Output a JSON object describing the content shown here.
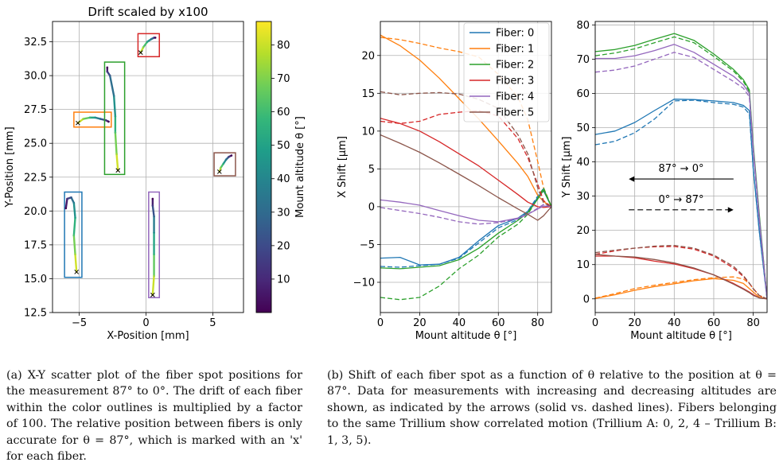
{
  "colors": {
    "fiber": [
      "#1f77b4",
      "#ff7f0e",
      "#2ca02c",
      "#d62728",
      "#9467bd",
      "#8c564b"
    ],
    "viridis": [
      "#440154",
      "#482878",
      "#3e4989",
      "#31688e",
      "#26828e",
      "#1f9e89",
      "#35b779",
      "#6ece58",
      "#b5de2b",
      "#fde725"
    ],
    "grid": "#b0b0b0",
    "axis": "#000000"
  },
  "captions": {
    "a": "(a) X-Y scatter plot of the fiber spot positions for the measurement 87° to 0°. The drift of each fiber within the color outlines is multiplied by a factor of 100. The relative position between fibers is only accurate for θ = 87°, which is marked with an 'x' for each fiber.",
    "b": "(b) Shift of each fiber spot as a function of θ relative to the position at θ = 87°. Data for measurements with increasing and decreasing altitudes are shown, as indicated by the arrows (solid vs. dashed lines). Fibers belonging to the same Trillium show correlated motion (Trillium A: 0, 2, 4 – Trillium B: 1, 3, 5)."
  },
  "chart_data": [
    {
      "type": "scatter",
      "title": "Drift scaled by x100",
      "xlabel": "X-Position [mm]",
      "ylabel": "Y-Position [mm]",
      "xlim": [
        -7.0,
        7.3
      ],
      "ylim": [
        12.5,
        34.0
      ],
      "xticks": [
        -5,
        0,
        5
      ],
      "yticks": [
        12.5,
        15.0,
        17.5,
        20.0,
        22.5,
        25.0,
        27.5,
        30.0,
        32.5
      ],
      "grid": true,
      "colorbar": {
        "label": "Mount altitude θ [°]",
        "range": [
          0,
          87
        ],
        "ticks": [
          10,
          20,
          30,
          40,
          50,
          60,
          70,
          80
        ]
      },
      "marker_at_87": "x",
      "fibers": [
        {
          "fiber": 0,
          "box": [
            -6.1,
            -4.8,
            15.1,
            21.4
          ],
          "track": [
            [
              -5.2,
              15.5
            ],
            [
              -5.3,
              16.8
            ],
            [
              -5.4,
              18.2
            ],
            [
              -5.3,
              19.5
            ],
            [
              -5.4,
              20.6
            ],
            [
              -5.6,
              21.0
            ],
            [
              -5.9,
              20.9
            ],
            [
              -6.0,
              20.2
            ]
          ],
          "theta": [
            87,
            75,
            62,
            50,
            38,
            25,
            12,
            0
          ]
        },
        {
          "fiber": 1,
          "box": [
            -5.4,
            -2.6,
            26.2,
            27.3
          ],
          "track": [
            [
              -5.1,
              26.5
            ],
            [
              -4.7,
              26.8
            ],
            [
              -4.2,
              26.9
            ],
            [
              -3.8,
              26.9
            ],
            [
              -3.4,
              26.8
            ],
            [
              -3.0,
              26.7
            ],
            [
              -2.8,
              26.6
            ]
          ],
          "theta": [
            87,
            73,
            58,
            44,
            29,
            15,
            0
          ]
        },
        {
          "fiber": 2,
          "box": [
            -3.1,
            -1.6,
            22.7,
            31.0
          ],
          "track": [
            [
              -2.1,
              23.0
            ],
            [
              -2.2,
              24.2
            ],
            [
              -2.3,
              25.8
            ],
            [
              -2.3,
              27.0
            ],
            [
              -2.4,
              28.5
            ],
            [
              -2.7,
              30.0
            ],
            [
              -2.9,
              30.3
            ],
            [
              -2.9,
              30.6
            ]
          ],
          "theta": [
            87,
            75,
            62,
            50,
            38,
            25,
            12,
            0
          ]
        },
        {
          "fiber": 3,
          "box": [
            -0.6,
            1.0,
            31.4,
            33.1
          ],
          "track": [
            [
              -0.4,
              31.7
            ],
            [
              -0.2,
              32.1
            ],
            [
              0.1,
              32.5
            ],
            [
              0.4,
              32.7
            ],
            [
              0.6,
              32.8
            ],
            [
              0.7,
              32.8
            ]
          ],
          "theta": [
            87,
            70,
            52,
            35,
            17,
            0
          ]
        },
        {
          "fiber": 4,
          "box": [
            0.2,
            1.0,
            13.6,
            21.4
          ],
          "track": [
            [
              0.5,
              13.8
            ],
            [
              0.6,
              15.2
            ],
            [
              0.6,
              16.8
            ],
            [
              0.6,
              18.4
            ],
            [
              0.6,
              19.6
            ],
            [
              0.5,
              20.4
            ],
            [
              0.5,
              20.9
            ]
          ],
          "theta": [
            87,
            73,
            58,
            44,
            29,
            15,
            0
          ]
        },
        {
          "fiber": 5,
          "box": [
            5.1,
            6.7,
            22.6,
            24.3
          ],
          "track": [
            [
              5.5,
              22.9
            ],
            [
              5.6,
              23.2
            ],
            [
              5.8,
              23.5
            ],
            [
              6.0,
              23.8
            ],
            [
              6.2,
              24.0
            ],
            [
              6.4,
              24.1
            ]
          ],
          "theta": [
            87,
            70,
            52,
            35,
            17,
            0
          ]
        }
      ]
    },
    {
      "type": "line",
      "xlabel": "Mount altitude θ [°]",
      "ylabel": "X Shift [μm]",
      "xlim": [
        0,
        87
      ],
      "ylim": [
        -14,
        24.5
      ],
      "xticks": [
        0,
        20,
        40,
        60,
        80
      ],
      "yticks": [
        -10,
        -5,
        0,
        5,
        10,
        15,
        20
      ],
      "grid": true,
      "legend": {
        "position": "upper-right",
        "entries": [
          "Fiber: 0",
          "Fiber: 1",
          "Fiber: 2",
          "Fiber: 3",
          "Fiber: 4",
          "Fiber: 5"
        ]
      },
      "x": [
        0,
        10,
        20,
        30,
        40,
        50,
        60,
        70,
        75,
        80,
        83,
        87
      ],
      "series": [
        {
          "fiber": 0,
          "style": "solid",
          "values": [
            -6.8,
            -6.7,
            -7.7,
            -7.6,
            -6.7,
            -4.5,
            -2.5,
            -1.5,
            -0.6,
            1.2,
            2.1,
            0.0
          ]
        },
        {
          "fiber": 0,
          "style": "dashed",
          "values": [
            -7.9,
            -8.0,
            -7.8,
            -7.6,
            -6.8,
            -4.8,
            -2.8,
            -1.7,
            -0.6,
            1.4,
            2.4,
            0.0
          ]
        },
        {
          "fiber": 1,
          "style": "solid",
          "values": [
            22.7,
            21.3,
            19.4,
            17.0,
            14.3,
            11.6,
            8.7,
            5.7,
            4.0,
            1.5,
            0.7,
            0.0
          ]
        },
        {
          "fiber": 1,
          "style": "dashed",
          "values": [
            22.4,
            22.1,
            21.6,
            21.0,
            20.5,
            19.8,
            17.5,
            14.5,
            11.5,
            6.0,
            2.5,
            0.0
          ]
        },
        {
          "fiber": 2,
          "style": "solid",
          "values": [
            -8.1,
            -8.2,
            -8.0,
            -7.8,
            -7.0,
            -5.5,
            -3.5,
            -1.8,
            -0.8,
            1.0,
            2.2,
            0.0
          ]
        },
        {
          "fiber": 2,
          "style": "dashed",
          "values": [
            -12.0,
            -12.3,
            -12.0,
            -10.5,
            -8.2,
            -6.4,
            -4.0,
            -2.3,
            -1.0,
            1.1,
            2.5,
            0.0
          ]
        },
        {
          "fiber": 3,
          "style": "solid",
          "values": [
            11.7,
            11.0,
            10.0,
            8.6,
            7.0,
            5.4,
            3.5,
            1.6,
            0.6,
            0.0,
            -0.1,
            0.0
          ]
        },
        {
          "fiber": 3,
          "style": "dashed",
          "values": [
            11.3,
            11.0,
            11.3,
            12.2,
            12.5,
            12.7,
            12.0,
            9.0,
            6.5,
            3.0,
            0.8,
            0.0
          ]
        },
        {
          "fiber": 4,
          "style": "solid",
          "values": [
            0.9,
            0.6,
            0.2,
            -0.5,
            -1.2,
            -1.8,
            -2.0,
            -1.5,
            -1.0,
            -0.3,
            0.1,
            0.0
          ]
        },
        {
          "fiber": 4,
          "style": "dashed",
          "values": [
            -0.1,
            -0.5,
            -0.9,
            -1.4,
            -2.0,
            -2.3,
            -2.1,
            -1.6,
            -1.0,
            -0.2,
            0.3,
            0.0
          ]
        },
        {
          "fiber": 5,
          "style": "solid",
          "values": [
            9.5,
            8.4,
            7.2,
            5.8,
            4.3,
            2.8,
            1.2,
            -0.3,
            -1.0,
            -1.8,
            -1.2,
            0.0
          ]
        },
        {
          "fiber": 5,
          "style": "dashed",
          "values": [
            15.2,
            14.8,
            15.0,
            15.1,
            14.9,
            14.2,
            13.0,
            9.5,
            7.0,
            2.5,
            0.5,
            0.0
          ]
        }
      ]
    },
    {
      "type": "line",
      "xlabel": "Mount altitude θ [°]",
      "ylabel": "Y Shift [μm]",
      "xlim": [
        0,
        87
      ],
      "ylim": [
        -4,
        81
      ],
      "xticks": [
        0,
        20,
        40,
        60,
        80
      ],
      "yticks": [
        0,
        10,
        20,
        30,
        40,
        50,
        60,
        70,
        80
      ],
      "grid": true,
      "annotations": [
        {
          "text": "87° → 0°",
          "arrow": "solid",
          "direction": "left",
          "x_range": [
            17,
            70
          ],
          "y": 35
        },
        {
          "text": "0° → 87°",
          "arrow": "dashed",
          "direction": "right",
          "x_range": [
            17,
            70
          ],
          "y": 26
        }
      ],
      "x": [
        0,
        10,
        20,
        30,
        40,
        50,
        60,
        70,
        75,
        78,
        80,
        83,
        87
      ],
      "series": [
        {
          "fiber": 0,
          "style": "solid",
          "values": [
            48.0,
            49.0,
            51.5,
            55.0,
            58.3,
            58.2,
            57.8,
            57.3,
            56.5,
            55.0,
            38.0,
            20.0,
            0.0
          ]
        },
        {
          "fiber": 0,
          "style": "dashed",
          "values": [
            45.0,
            46.0,
            48.5,
            52.5,
            57.8,
            58.0,
            57.3,
            56.8,
            56.0,
            54.0,
            38.0,
            20.0,
            0.0
          ]
        },
        {
          "fiber": 1,
          "style": "solid",
          "values": [
            0.1,
            1.2,
            2.5,
            3.6,
            4.4,
            5.3,
            5.9,
            5.4,
            4.5,
            3.0,
            2.0,
            0.5,
            0.0
          ]
        },
        {
          "fiber": 1,
          "style": "dashed",
          "values": [
            0.2,
            1.5,
            3.0,
            4.0,
            4.8,
            5.6,
            6.2,
            6.4,
            5.8,
            4.5,
            3.0,
            1.0,
            0.0
          ]
        },
        {
          "fiber": 2,
          "style": "solid",
          "values": [
            72.2,
            72.8,
            74.0,
            75.8,
            77.5,
            75.5,
            71.5,
            67.0,
            64.0,
            61.0,
            45.0,
            25.0,
            0.0
          ]
        },
        {
          "fiber": 2,
          "style": "dashed",
          "values": [
            71.0,
            71.8,
            73.0,
            74.8,
            76.5,
            74.8,
            70.8,
            66.5,
            63.5,
            60.5,
            44.0,
            24.0,
            0.0
          ]
        },
        {
          "fiber": 3,
          "style": "solid",
          "values": [
            12.5,
            12.5,
            12.0,
            11.0,
            10.2,
            8.8,
            7.0,
            4.5,
            3.0,
            2.0,
            1.2,
            0.3,
            0.0
          ]
        },
        {
          "fiber": 3,
          "style": "dashed",
          "values": [
            13.0,
            14.0,
            14.8,
            15.2,
            15.3,
            14.5,
            12.5,
            9.0,
            6.5,
            4.5,
            3.0,
            1.0,
            0.0
          ]
        },
        {
          "fiber": 4,
          "style": "solid",
          "values": [
            70.2,
            70.2,
            71.0,
            72.5,
            74.3,
            72.0,
            68.5,
            65.0,
            62.5,
            60.0,
            44.0,
            24.0,
            0.0
          ]
        },
        {
          "fiber": 4,
          "style": "dashed",
          "values": [
            66.2,
            66.8,
            68.0,
            70.0,
            72.0,
            70.5,
            67.0,
            63.5,
            61.5,
            59.0,
            43.0,
            23.0,
            0.0
          ]
        },
        {
          "fiber": 5,
          "style": "solid",
          "values": [
            13.0,
            12.5,
            12.2,
            11.5,
            10.5,
            9.0,
            7.0,
            4.3,
            2.8,
            1.8,
            1.0,
            0.3,
            0.0
          ]
        },
        {
          "fiber": 5,
          "style": "dashed",
          "values": [
            13.5,
            14.2,
            14.8,
            15.4,
            15.6,
            14.8,
            12.8,
            9.5,
            6.8,
            4.6,
            3.0,
            1.0,
            0.0
          ]
        }
      ]
    }
  ]
}
